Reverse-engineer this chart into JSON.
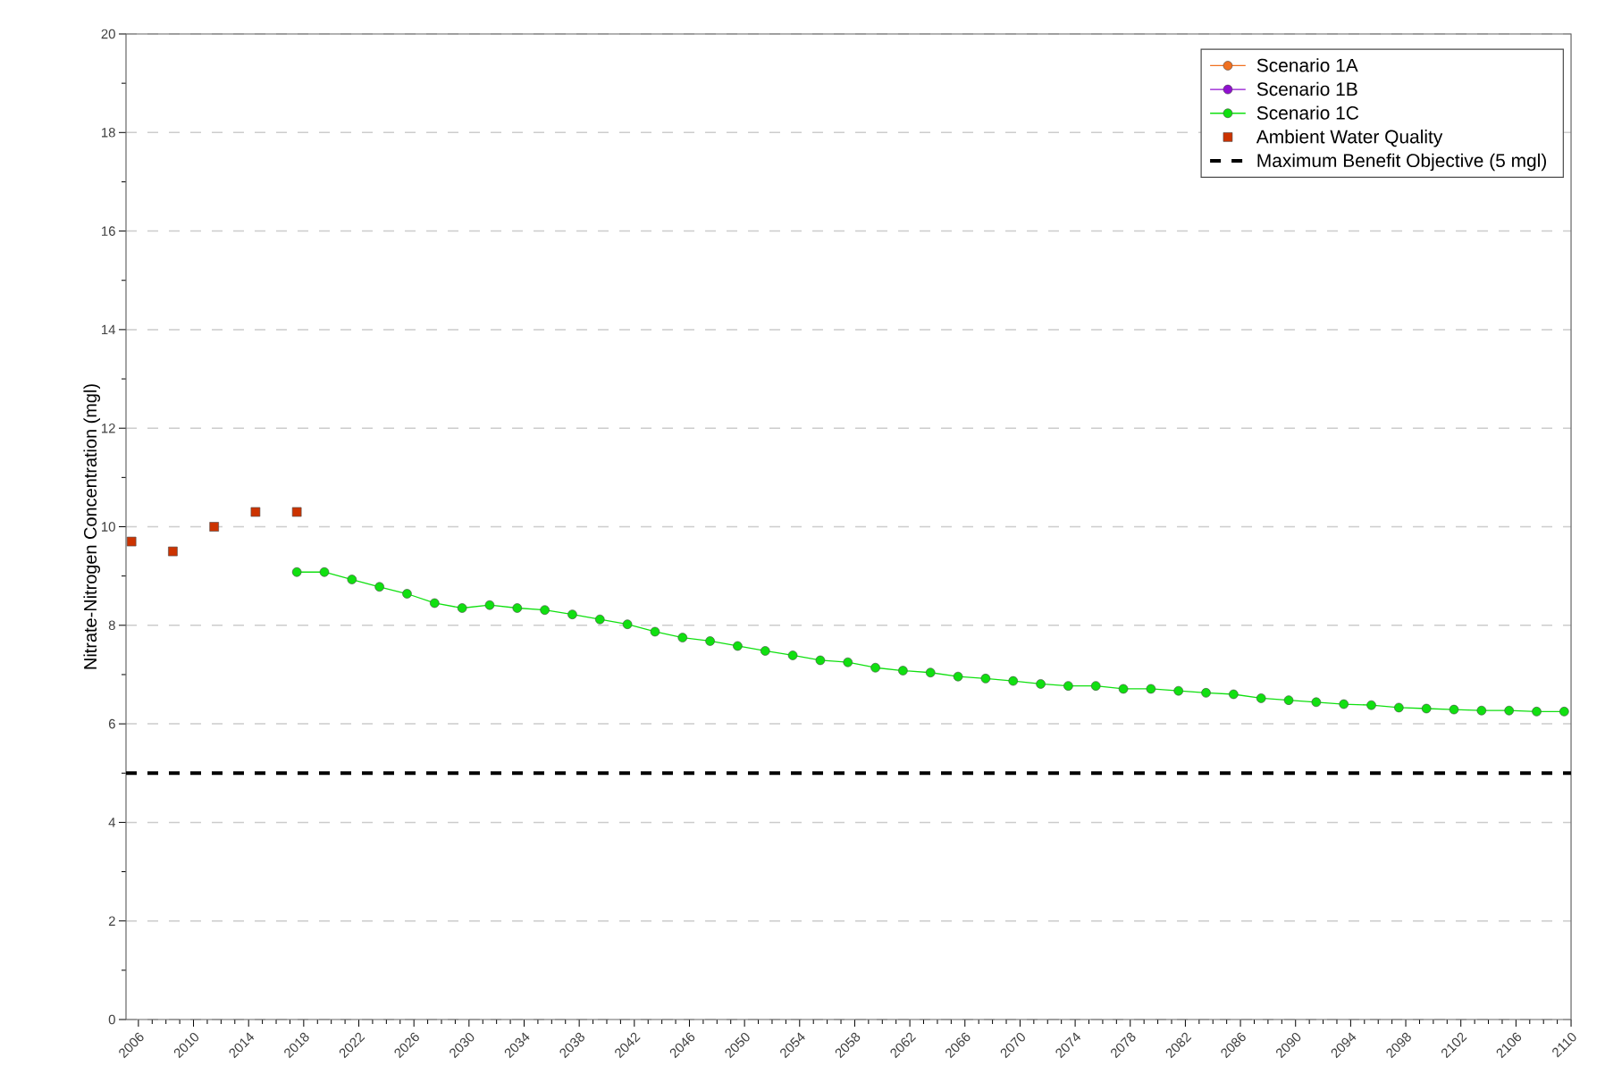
{
  "chart_data": {
    "type": "line",
    "ylabel": "Nitrate-Nitrogen Concentration (mgl)",
    "xlim": [
      2005.1,
      2110
    ],
    "ylim": [
      0,
      20
    ],
    "xticks": [
      2006,
      2010,
      2014,
      2018,
      2022,
      2026,
      2030,
      2034,
      2038,
      2042,
      2046,
      2050,
      2054,
      2058,
      2062,
      2066,
      2070,
      2074,
      2078,
      2082,
      2086,
      2090,
      2094,
      2098,
      2102,
      2106,
      2110
    ],
    "yticks": [
      0,
      2,
      4,
      6,
      8,
      10,
      12,
      14,
      16,
      18,
      20
    ],
    "grid": "y",
    "legend": "top right",
    "marker": "circle",
    "series": [
      {
        "name": "Scenario 1A",
        "color": "#f07020"
      },
      {
        "name": "Scenario 1B",
        "color": "#9010d0"
      },
      {
        "name": "Scenario 1C",
        "color": "#10e010",
        "x": [
          2017.5,
          2019.5,
          2021.5,
          2023.5,
          2025.5,
          2027.5,
          2029.5,
          2031.5,
          2033.5,
          2035.5,
          2037.5,
          2039.5,
          2041.5,
          2043.5,
          2045.5,
          2047.5,
          2049.5,
          2051.5,
          2053.5,
          2055.5,
          2057.5,
          2059.5,
          2061.5,
          2063.5,
          2065.5,
          2067.5,
          2069.5,
          2071.5,
          2073.5,
          2075.5,
          2077.5,
          2079.5,
          2081.5,
          2083.5,
          2085.5,
          2087.5,
          2089.5,
          2091.5,
          2093.5,
          2095.5,
          2097.5,
          2099.5,
          2101.5,
          2103.5,
          2105.5,
          2107.5,
          2109.5
        ],
        "values": [
          9.08,
          9.08,
          8.93,
          8.78,
          8.64,
          8.45,
          8.35,
          8.41,
          8.35,
          8.31,
          8.22,
          8.12,
          8.02,
          7.87,
          7.75,
          7.68,
          7.58,
          7.48,
          7.39,
          7.29,
          7.25,
          7.14,
          7.08,
          7.04,
          6.96,
          6.92,
          6.87,
          6.81,
          6.77,
          6.77,
          6.71,
          6.71,
          6.67,
          6.63,
          6.6,
          6.52,
          6.48,
          6.44,
          6.4,
          6.38,
          6.33,
          6.31,
          6.29,
          6.27,
          6.27,
          6.25,
          6.25
        ]
      },
      {
        "name": "Ambient Water Quality",
        "type": "scatter",
        "marker": "square",
        "color": "#cc3300",
        "x": [
          2005.5,
          2008.5,
          2011.5,
          2014.5,
          2017.5
        ],
        "values": [
          9.7,
          9.5,
          10.0,
          10.3,
          10.3
        ]
      }
    ],
    "ref_lines": [
      {
        "axis": "y",
        "value": 5,
        "label": "Maximum Benefit Objective (5 mgl)",
        "color": "#000000",
        "line_style": "dashed"
      }
    ]
  }
}
